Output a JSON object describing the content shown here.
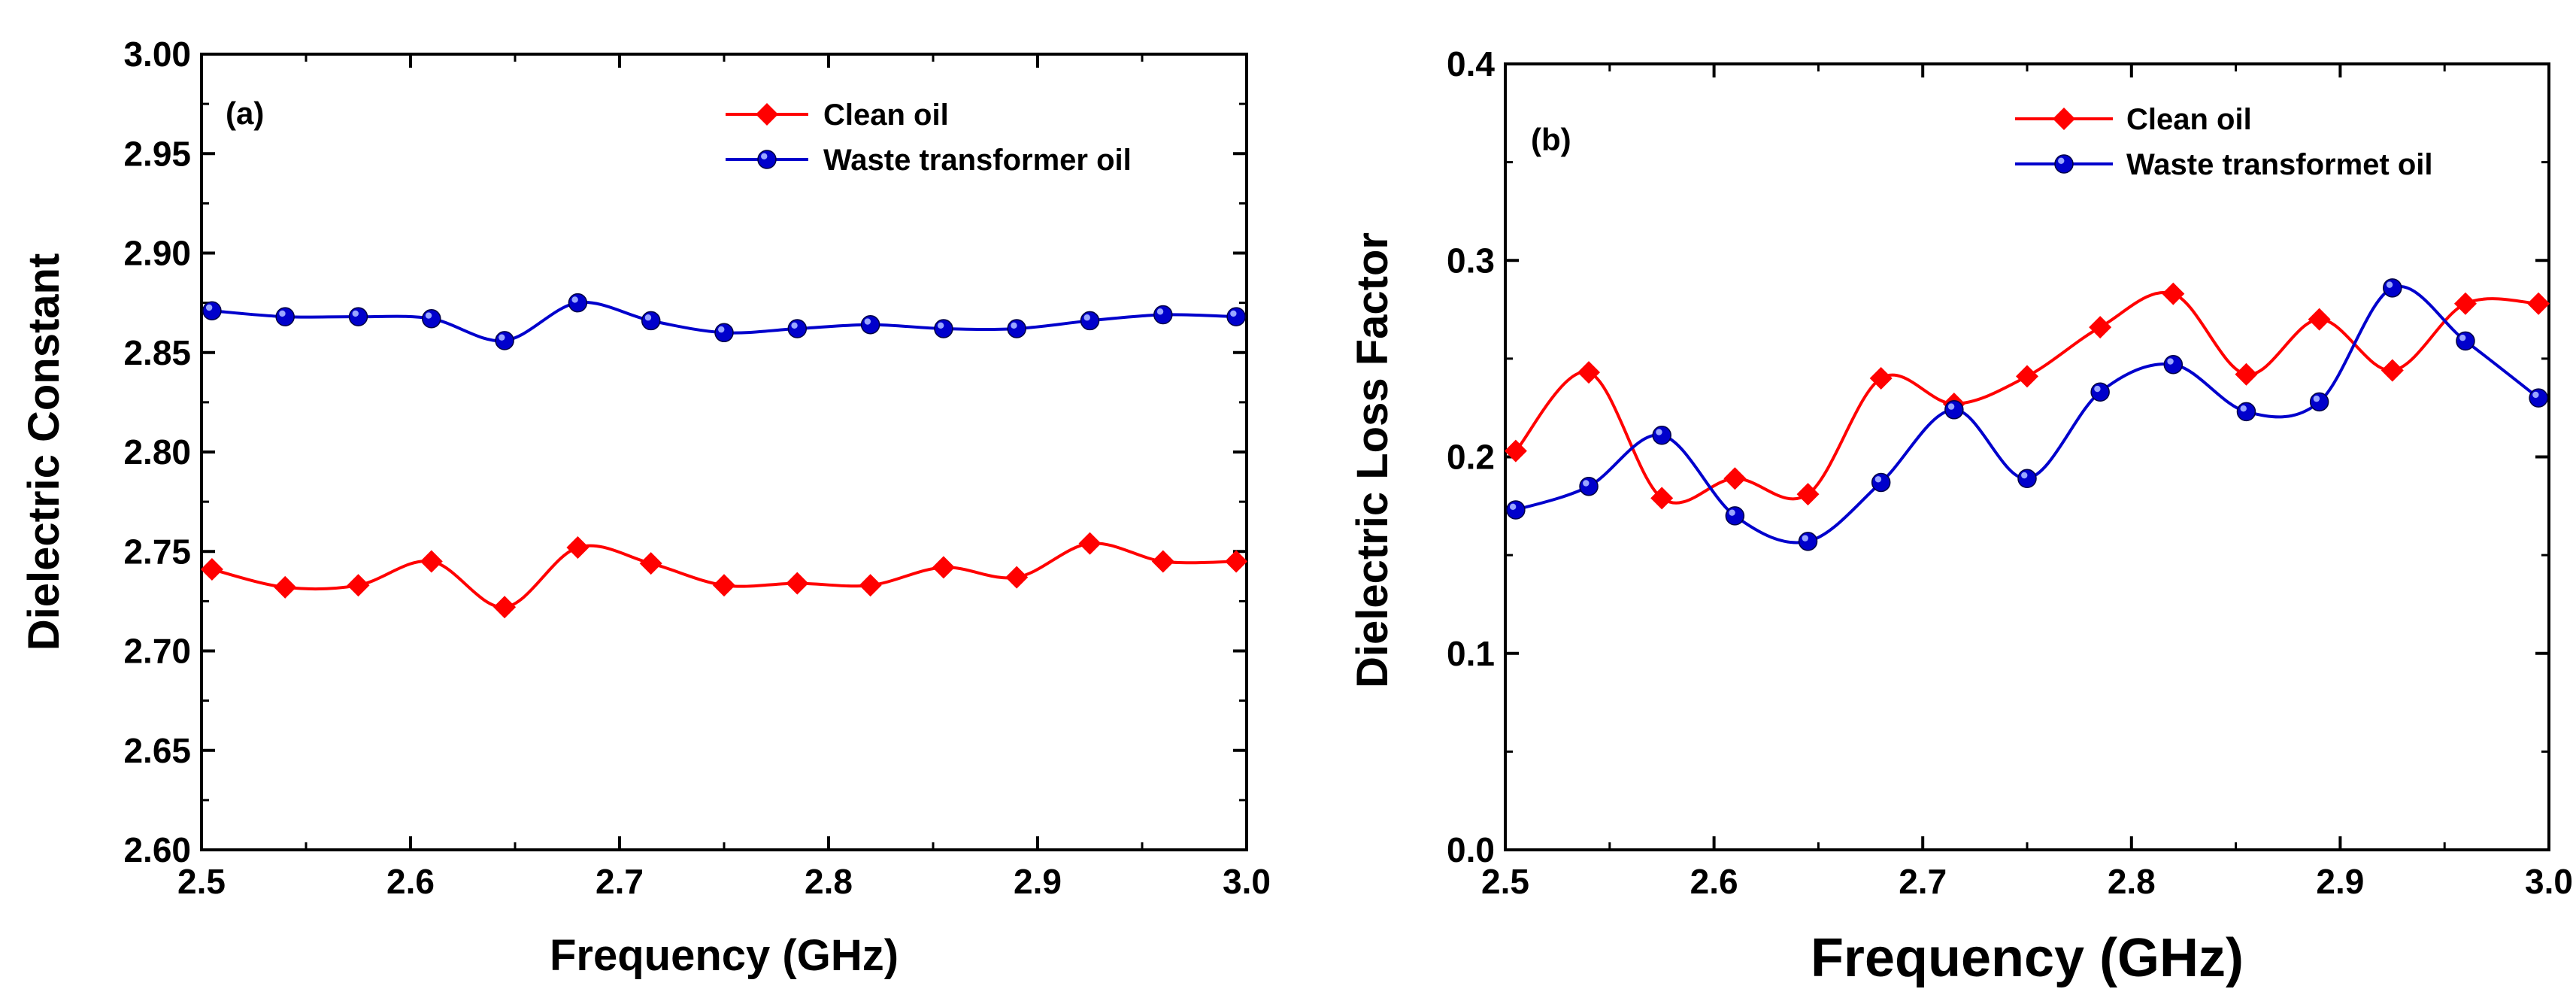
{
  "chart_data": [
    {
      "type": "line",
      "panel_label": "(a)",
      "xlabel": "Frequency (GHz)",
      "ylabel": "Dielectric Constant",
      "xlim": [
        2.5,
        3.0
      ],
      "ylim": [
        2.6,
        3.0
      ],
      "xticks": [
        "2.5",
        "2.6",
        "2.7",
        "2.8",
        "2.9",
        "3.0"
      ],
      "yticks": [
        "2.60",
        "2.65",
        "2.70",
        "2.75",
        "2.80",
        "2.85",
        "2.90",
        "2.95",
        "3.00"
      ],
      "legend_position": "top-right",
      "x": [
        2.505,
        2.54,
        2.575,
        2.61,
        2.645,
        2.68,
        2.715,
        2.75,
        2.785,
        2.82,
        2.855,
        2.89,
        2.925,
        2.96,
        2.995
      ],
      "series": [
        {
          "name": "Clean oil",
          "color": "#ff0000",
          "marker": "diamond",
          "values": [
            2.741,
            2.732,
            2.733,
            2.745,
            2.722,
            2.752,
            2.744,
            2.733,
            2.734,
            2.733,
            2.742,
            2.737,
            2.754,
            2.745,
            2.745
          ]
        },
        {
          "name": "Waste transformer oil",
          "color": "#0000cc",
          "marker": "circle",
          "values": [
            2.871,
            2.868,
            2.868,
            2.867,
            2.856,
            2.875,
            2.866,
            2.86,
            2.862,
            2.864,
            2.862,
            2.862,
            2.866,
            2.869,
            2.868
          ]
        }
      ]
    },
    {
      "type": "line",
      "panel_label": "(b)",
      "xlabel": "Frequency (GHz)",
      "ylabel": "Dielectric Loss Factor",
      "xlim": [
        2.5,
        3.0
      ],
      "ylim": [
        0.0,
        0.4
      ],
      "xticks": [
        "2.5",
        "2.6",
        "2.7",
        "2.8",
        "2.9",
        "3.0"
      ],
      "yticks": [
        "0.0",
        "0.1",
        "0.2",
        "0.3",
        "0.4"
      ],
      "legend_position": "top-right",
      "x": [
        2.505,
        2.54,
        2.575,
        2.61,
        2.645,
        2.68,
        2.715,
        2.75,
        2.785,
        2.82,
        2.855,
        2.89,
        2.925,
        2.96,
        2.995
      ],
      "series": [
        {
          "name": "Clean oil",
          "color": "#ff0000",
          "marker": "diamond",
          "values": [
            0.203,
            0.243,
            0.179,
            0.189,
            0.181,
            0.24,
            0.227,
            0.241,
            0.266,
            0.283,
            0.242,
            0.27,
            0.244,
            0.278,
            0.278
          ]
        },
        {
          "name": "Waste transformet oil",
          "color": "#0000cc",
          "marker": "circle",
          "values": [
            0.173,
            0.185,
            0.211,
            0.17,
            0.157,
            0.187,
            0.224,
            0.189,
            0.233,
            0.247,
            0.223,
            0.228,
            0.286,
            0.259,
            0.23
          ]
        }
      ]
    }
  ]
}
